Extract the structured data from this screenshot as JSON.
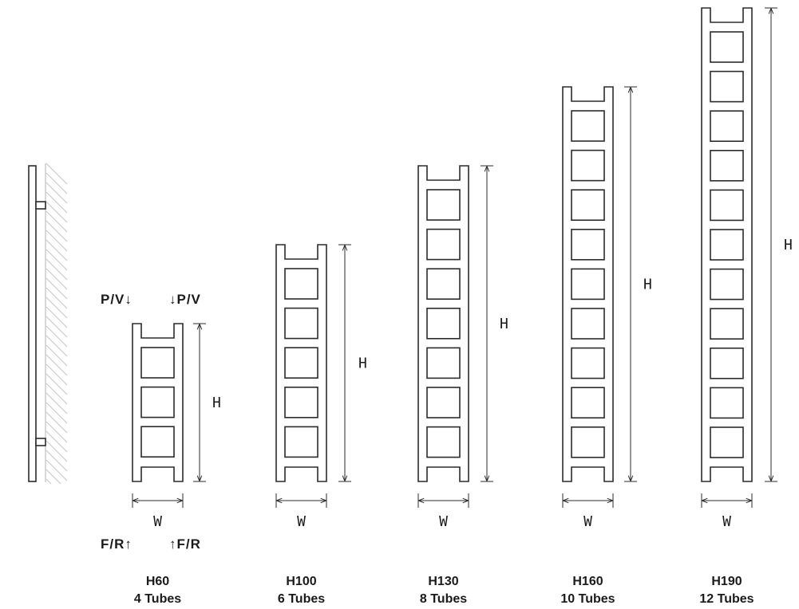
{
  "flow_labels": {
    "inlet_left": "P/V↓",
    "inlet_right": "↓P/V",
    "return_left": "F/R↑",
    "return_right": "↑F/R"
  },
  "dimension_labels": {
    "height": "H",
    "width": "W"
  },
  "models": [
    {
      "height_label": "H60",
      "tubes_label": "4 Tubes",
      "squares": 3
    },
    {
      "height_label": "H100",
      "tubes_label": "6 Tubes",
      "squares": 5
    },
    {
      "height_label": "H130",
      "tubes_label": "8 Tubes",
      "squares": 7
    },
    {
      "height_label": "H160",
      "tubes_label": "10 Tubes",
      "squares": 9
    },
    {
      "height_label": "H190",
      "tubes_label": "12 Tubes",
      "squares": 11
    }
  ],
  "colors": {
    "line": "#2b2b2b",
    "hatch": "#bdbdbd",
    "background": "#ffffff"
  }
}
